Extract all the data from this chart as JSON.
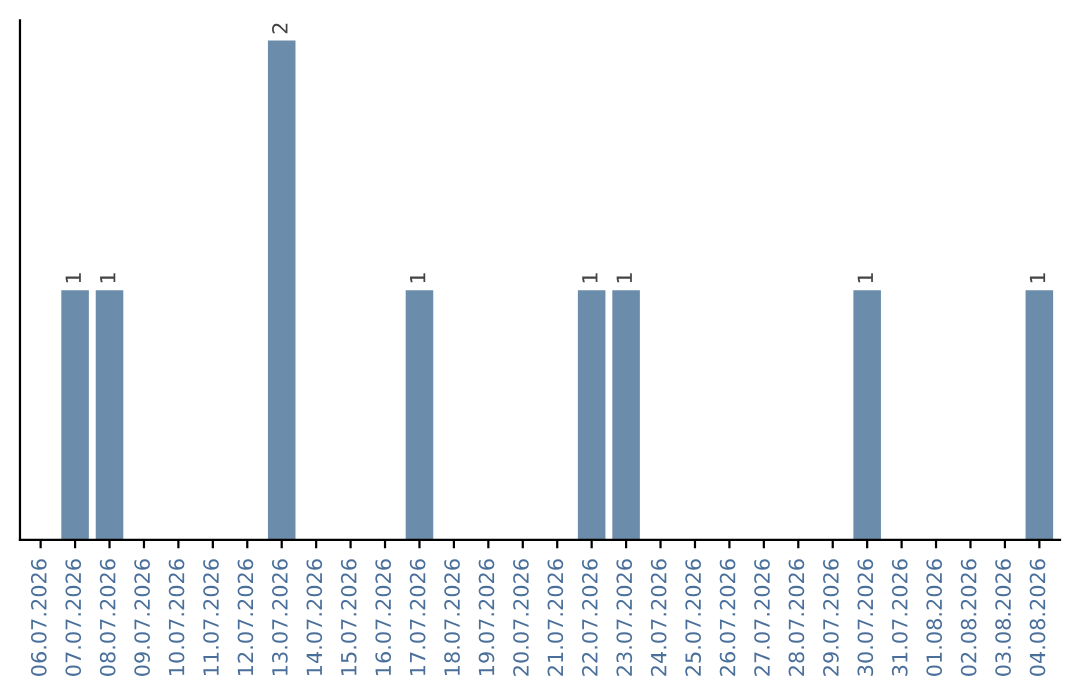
{
  "chart_data": {
    "type": "bar",
    "categories": [
      "06.07.2026",
      "07.07.2026",
      "08.07.2026",
      "09.07.2026",
      "10.07.2026",
      "11.07.2026",
      "12.07.2026",
      "13.07.2026",
      "14.07.2026",
      "15.07.2026",
      "16.07.2026",
      "17.07.2026",
      "18.07.2026",
      "19.07.2026",
      "20.07.2026",
      "21.07.2026",
      "22.07.2026",
      "23.07.2026",
      "24.07.2026",
      "25.07.2026",
      "26.07.2026",
      "27.07.2026",
      "28.07.2026",
      "29.07.2026",
      "30.07.2026",
      "31.07.2026",
      "01.08.2026",
      "02.08.2026",
      "03.08.2026",
      "04.08.2026"
    ],
    "values": [
      0,
      1,
      1,
      0,
      0,
      0,
      0,
      2,
      0,
      0,
      0,
      1,
      0,
      0,
      0,
      0,
      1,
      1,
      0,
      0,
      0,
      0,
      0,
      0,
      1,
      0,
      0,
      0,
      0,
      1
    ],
    "value_labels": [
      null,
      "1",
      "1",
      null,
      null,
      null,
      null,
      "2",
      null,
      null,
      null,
      "1",
      null,
      null,
      null,
      null,
      "1",
      "1",
      null,
      null,
      null,
      null,
      null,
      null,
      "1",
      null,
      null,
      null,
      null,
      "1"
    ],
    "color": "#6b8caa",
    "ylim": [
      0,
      2.08
    ],
    "tick_labels": "x",
    "grid": false,
    "legend": false
  }
}
